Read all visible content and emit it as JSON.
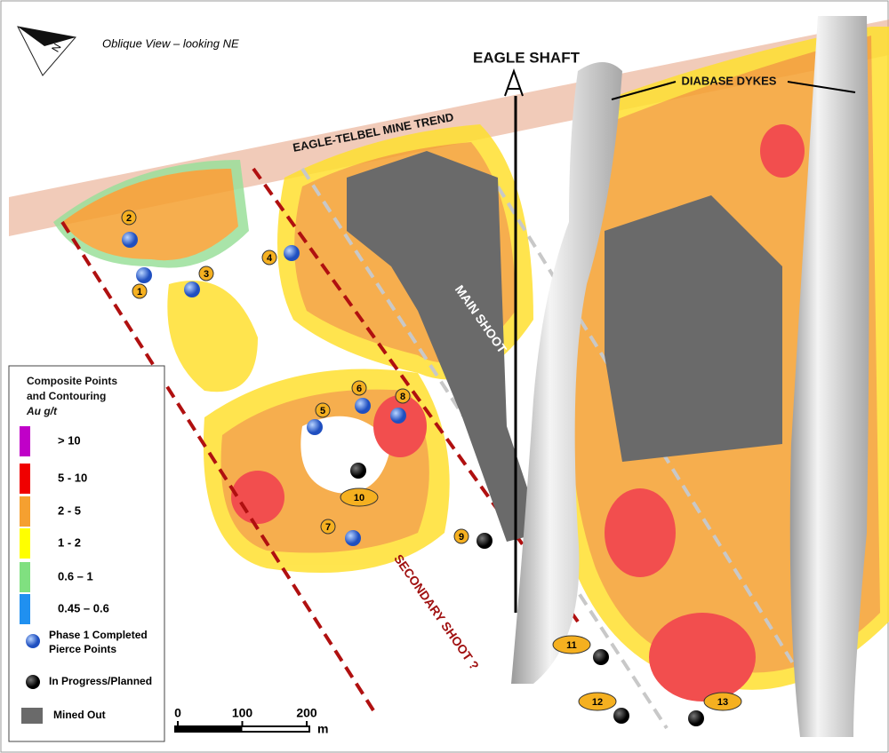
{
  "view_label": "Oblique View – looking NE",
  "north_label": "N",
  "labels": {
    "eagle_shaft": "EAGLE SHAFT",
    "diabase_dykes": "DIABASE DYKES",
    "mine_trend": "EAGLE-TELBEL MINE TREND",
    "main_shoot": "MAIN SHOOT",
    "secondary_shoot": "SECONDARY SHOOT ?"
  },
  "legend": {
    "title_lines": [
      "Composite Points",
      "and Contouring"
    ],
    "unit": "Au g/t",
    "grades": [
      {
        "label": "> 10",
        "color": "#c000c8"
      },
      {
        "label": "5 - 10",
        "color": "#f00000"
      },
      {
        "label": "2 - 5",
        "color": "#f5a030"
      },
      {
        "label": "1 - 2",
        "color": "#ffff00"
      },
      {
        "label": "0.6 – 1",
        "color": "#80e080"
      },
      {
        "label": "0.45 – 0.6",
        "color": "#2090f0"
      }
    ],
    "completed_label": "Phase 1 Completed\nPierce Points",
    "planned_label": "In Progress/Planned",
    "mined_label": "Mined Out"
  },
  "pierce_points": {
    "completed": [
      "1",
      "2",
      "3",
      "4",
      "5",
      "6",
      "7",
      "8"
    ],
    "planned": [
      "9",
      "10",
      "11",
      "12",
      "13"
    ]
  },
  "scale_bar": {
    "ticks": [
      0,
      100,
      200
    ],
    "unit": "m"
  }
}
